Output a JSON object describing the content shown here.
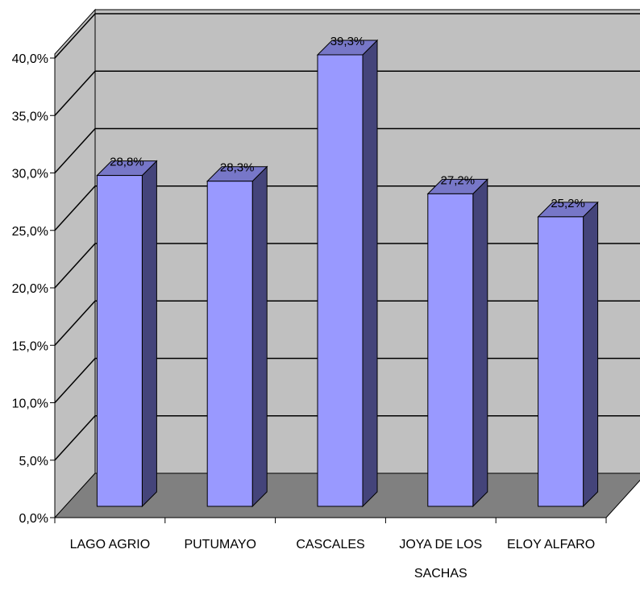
{
  "chart_data": {
    "type": "bar",
    "style": "3d-column",
    "categories": [
      "LAGO AGRIO",
      "PUTUMAYO",
      "CASCALES",
      "JOYA DE LOS SACHAS",
      "ELOY ALFARO"
    ],
    "category_lines": [
      [
        "LAGO AGRIO"
      ],
      [
        "PUTUMAYO"
      ],
      [
        "CASCALES"
      ],
      [
        "JOYA DE LOS",
        "SACHAS"
      ],
      [
        "ELOY ALFARO"
      ]
    ],
    "values": [
      28.8,
      28.3,
      39.3,
      27.2,
      25.2
    ],
    "data_labels": [
      "28,8%",
      "28,3%",
      "39,3%",
      "27,2%",
      "25,2%"
    ],
    "y_ticks": [
      "0,0%",
      "5,0%",
      "10,0%",
      "15,0%",
      "20,0%",
      "25,0%",
      "30,0%",
      "35,0%",
      "40,0%"
    ],
    "ylim": [
      0,
      40
    ],
    "title": "",
    "xlabel": "",
    "ylabel": "",
    "grid": true,
    "legend": "none",
    "colors": {
      "bar_front": "#9999ff",
      "bar_side": "#44447a",
      "bar_top": "#7777c8",
      "back_wall": "#c0c0c0",
      "side_wall": "#c0c0c0",
      "floor": "#808080",
      "gridline": "#000000"
    }
  }
}
